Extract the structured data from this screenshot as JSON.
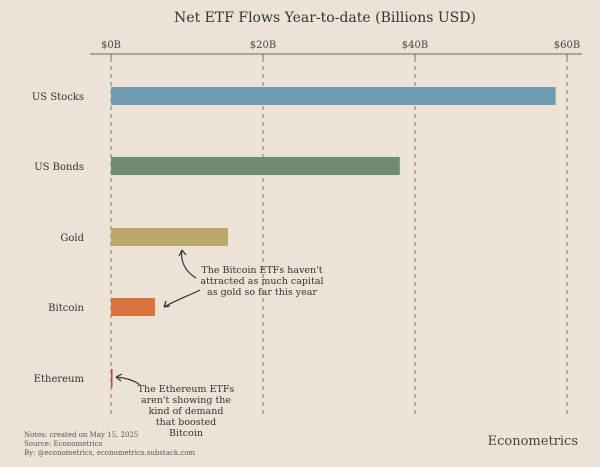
{
  "chart_data": {
    "type": "bar",
    "orientation": "horizontal",
    "title": "Net ETF Flows Year-to-date (Billions USD)",
    "categories": [
      "US Stocks",
      "US Bonds",
      "Gold",
      "Bitcoin",
      "Ethereum"
    ],
    "values": [
      58.5,
      38.0,
      15.4,
      5.8,
      0.2
    ],
    "units": "Billions USD",
    "xlim": [
      0,
      60
    ],
    "xticks": [
      0,
      20,
      40,
      60
    ],
    "xtick_labels": [
      "$0B",
      "$20B",
      "$40B",
      "$60B"
    ],
    "x_axis_position": "top",
    "grid": "vertical dashed",
    "bar_colors": [
      "#6f9bb1",
      "#6e8c73",
      "#bca86b",
      "#d8733e",
      "#c93c5c"
    ],
    "annotations": [
      {
        "target": "Gold / Bitcoin",
        "text": "The Bitcoin ETFs haven't attracted as much capital as gold so far this year"
      },
      {
        "target": "Ethereum",
        "text": "The Ethereum ETFs aren't showing the kind of demand that boosted Bitcoin"
      }
    ]
  },
  "annotation_texts": [
    [
      "The Bitcoin ETFs haven't",
      "attracted as much capital",
      "as gold so far this year"
    ],
    [
      "The Ethereum ETFs",
      "aren't showing the",
      "kind of demand",
      "that boosted",
      "Bitcoin"
    ]
  ],
  "footer": {
    "notes": "Notes: created on May 15, 2025",
    "source": "Source: Econometrics",
    "by": "By: @econometrics, econometrics.substack.com",
    "brand": "Econometrics"
  }
}
